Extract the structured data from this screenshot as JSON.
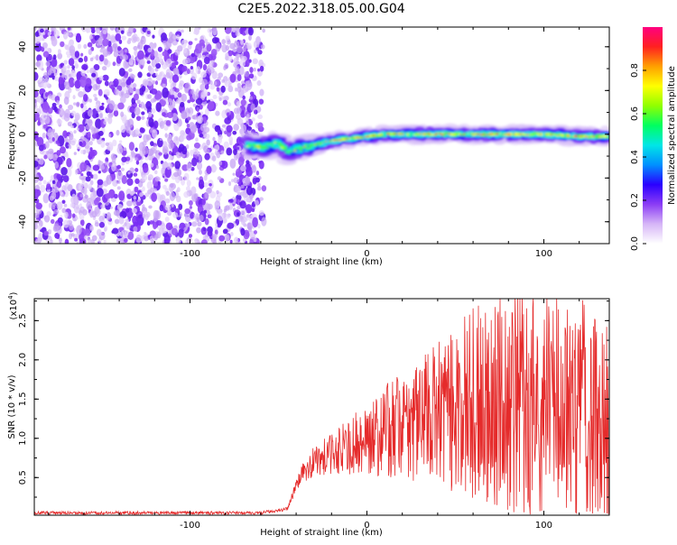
{
  "figure": {
    "title": "C2E5.2022.318.05.00.G04"
  },
  "colors": {
    "snr_line": "#e52b2b",
    "noise_purple": "#7b2cf5",
    "track_cyan": "#00e6e6",
    "track_red": "#ff2020"
  },
  "chart_data": [
    {
      "type": "heatmap",
      "name": "spectrogram",
      "title": "",
      "xlabel": "Height of straight line (km)",
      "ylabel": "Frequency (Hz)",
      "xlim": [
        -188,
        137
      ],
      "ylim": [
        -50,
        49
      ],
      "x_ticks": [
        -100,
        0,
        100
      ],
      "y_ticks": [
        -40,
        -20,
        0,
        20,
        40
      ],
      "grid": false,
      "noise_region": {
        "x_range": [
          -188,
          -58
        ],
        "y_range": [
          -50,
          49
        ]
      },
      "signal_track": {
        "x": [
          -68,
          -60,
          -50,
          -45,
          -40,
          -30,
          -20,
          -10,
          0,
          10,
          20,
          40,
          60,
          80,
          100,
          120,
          137
        ],
        "y": [
          -5,
          -6,
          -4,
          -8,
          -7,
          -5,
          -3,
          -2,
          -1,
          0,
          0,
          0,
          0,
          0,
          0,
          -1,
          -1
        ]
      },
      "colorbar": {
        "label": "Normalized spectral amplitude",
        "range": [
          0.0,
          1.0
        ],
        "ticks": [
          0.0,
          0.2,
          0.4,
          0.6,
          0.8
        ],
        "tick_labels": [
          "0.0",
          "0.2",
          "0.4",
          "0.6",
          "0.8"
        ],
        "colors": [
          "#ffffff",
          "#d6b5f7",
          "#8b3cf5",
          "#2a00ff",
          "#0090ff",
          "#00e6e6",
          "#00ff60",
          "#90ff00",
          "#ffff00",
          "#ffa000",
          "#ff2020",
          "#ff0080"
        ]
      }
    },
    {
      "type": "line",
      "name": "snr",
      "title": "",
      "xlabel": "Height of straight line (km)",
      "ylabel": "SNR (10 * v/v)",
      "y_multiplier": "(x10",
      "y_multiplier_exp": "4",
      "y_multiplier_close": ")",
      "xlim": [
        -188,
        137
      ],
      "ylim": [
        0.02,
        2.78
      ],
      "x_ticks": [
        -100,
        0,
        100
      ],
      "y_ticks": [
        0.5,
        1.0,
        1.5,
        2.0,
        2.5
      ],
      "y_tick_labels": [
        "0.5",
        "1.0",
        "1.5",
        "2.0",
        "2.5"
      ],
      "grid": false,
      "series": [
        {
          "x": [
            -188,
            -150,
            -100,
            -60,
            -45,
            -40,
            -35,
            -30,
            -25,
            -20,
            -15,
            -10,
            -5,
            0,
            5,
            10,
            20,
            30,
            40,
            50,
            60,
            70,
            80,
            90,
            100,
            110,
            120,
            130,
            137
          ],
          "y": [
            0.05,
            0.05,
            0.05,
            0.05,
            0.1,
            0.4,
            0.6,
            0.7,
            0.75,
            0.8,
            0.85,
            0.9,
            0.95,
            1.0,
            1.05,
            1.1,
            1.15,
            1.25,
            1.3,
            1.4,
            1.45,
            1.5,
            1.5,
            1.45,
            1.45,
            1.45,
            1.4,
            1.35,
            1.35
          ]
        }
      ]
    }
  ]
}
